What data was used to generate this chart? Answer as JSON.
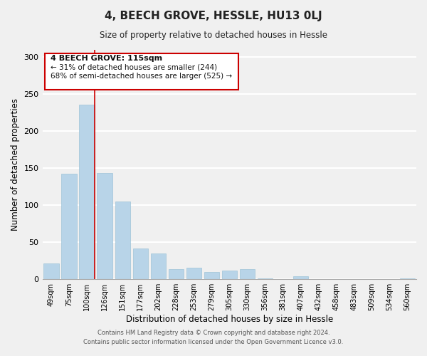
{
  "title": "4, BEECH GROVE, HESSLE, HU13 0LJ",
  "subtitle": "Size of property relative to detached houses in Hessle",
  "xlabel": "Distribution of detached houses by size in Hessle",
  "ylabel": "Number of detached properties",
  "bar_color": "#b8d4e8",
  "bar_edge_color": "#9fc4d8",
  "categories": [
    "49sqm",
    "75sqm",
    "100sqm",
    "126sqm",
    "151sqm",
    "177sqm",
    "202sqm",
    "228sqm",
    "253sqm",
    "279sqm",
    "305sqm",
    "330sqm",
    "356sqm",
    "381sqm",
    "407sqm",
    "432sqm",
    "458sqm",
    "483sqm",
    "509sqm",
    "534sqm",
    "560sqm"
  ],
  "values": [
    21,
    143,
    236,
    144,
    105,
    42,
    35,
    14,
    16,
    10,
    12,
    14,
    1,
    0,
    4,
    0,
    0,
    0,
    0,
    0,
    1
  ],
  "ylim": [
    0,
    310
  ],
  "yticks": [
    0,
    50,
    100,
    150,
    200,
    250,
    300
  ],
  "annotation_title": "4 BEECH GROVE: 115sqm",
  "annotation_line1": "← 31% of detached houses are smaller (244)",
  "annotation_line2": "68% of semi-detached houses are larger (525) →",
  "footer_line1": "Contains HM Land Registry data © Crown copyright and database right 2024.",
  "footer_line2": "Contains public sector information licensed under the Open Government Licence v3.0.",
  "background_color": "#f0f0f0",
  "grid_color": "#ffffff",
  "red_line_color": "#cc0000"
}
